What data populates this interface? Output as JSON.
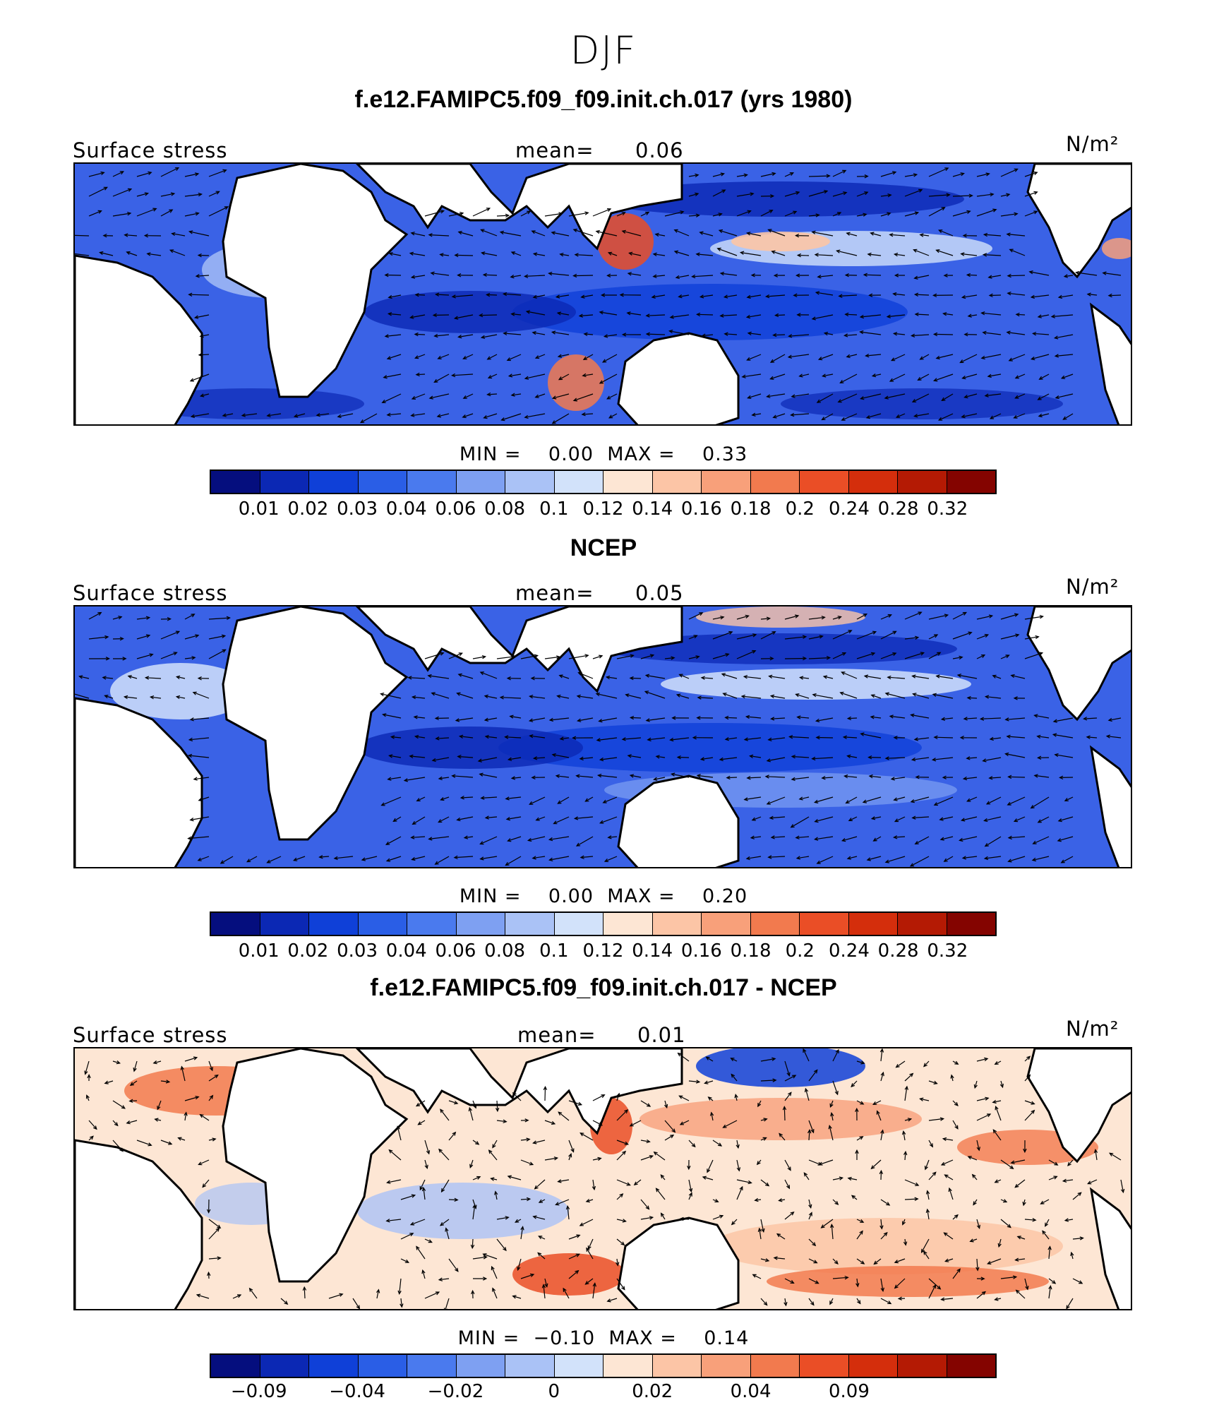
{
  "title": "DJF",
  "palette": [
    "#050e7e",
    "#0b28b4",
    "#0f40d8",
    "#2a5ee6",
    "#4a7aee",
    "#7ea0f2",
    "#aac2f6",
    "#d2e2fa",
    "#fde6d4",
    "#fcc5a6",
    "#f8a07a",
    "#f27a4e",
    "#ea4e26",
    "#d42e0c",
    "#b41a04",
    "#840400"
  ],
  "panels": [
    {
      "title": "f.e12.FAMIPC5.f09_f09.init.ch.017 (yrs 1980)",
      "variable": "Surface stress",
      "mean_label": "mean=",
      "mean_value": "0.06",
      "units": "N/m²",
      "min_label": "MIN =",
      "min_value": "0.00",
      "max_label": "MAX =",
      "max_value": "0.33",
      "tick_labels": [
        "0.01",
        "0.02",
        "0.03",
        "0.04",
        "0.06",
        "0.08",
        "0.1",
        "0.12",
        "0.14",
        "0.16",
        "0.18",
        "0.2",
        "0.24",
        "0.28",
        "0.32"
      ]
    },
    {
      "title": "NCEP",
      "variable": "Surface stress",
      "mean_label": "mean=",
      "mean_value": "0.05",
      "units": "N/m²",
      "min_label": "MIN =",
      "min_value": "0.00",
      "max_label": "MAX =",
      "max_value": "0.20",
      "tick_labels": [
        "0.01",
        "0.02",
        "0.03",
        "0.04",
        "0.06",
        "0.08",
        "0.1",
        "0.12",
        "0.14",
        "0.16",
        "0.18",
        "0.2",
        "0.24",
        "0.28",
        "0.32"
      ]
    },
    {
      "title": "f.e12.FAMIPC5.f09_f09.init.ch.017 - NCEP",
      "variable": "Surface stress",
      "mean_label": "mean=",
      "mean_value": "0.01",
      "units": "N/m²",
      "min_label": "MIN =",
      "min_value": "−0.10",
      "max_label": "MAX =",
      "max_value": "0.14",
      "tick_labels": [
        "−0.09",
        "−0.04",
        "−0.02",
        "0",
        "0.02",
        "0.04",
        "0.09"
      ]
    }
  ]
}
